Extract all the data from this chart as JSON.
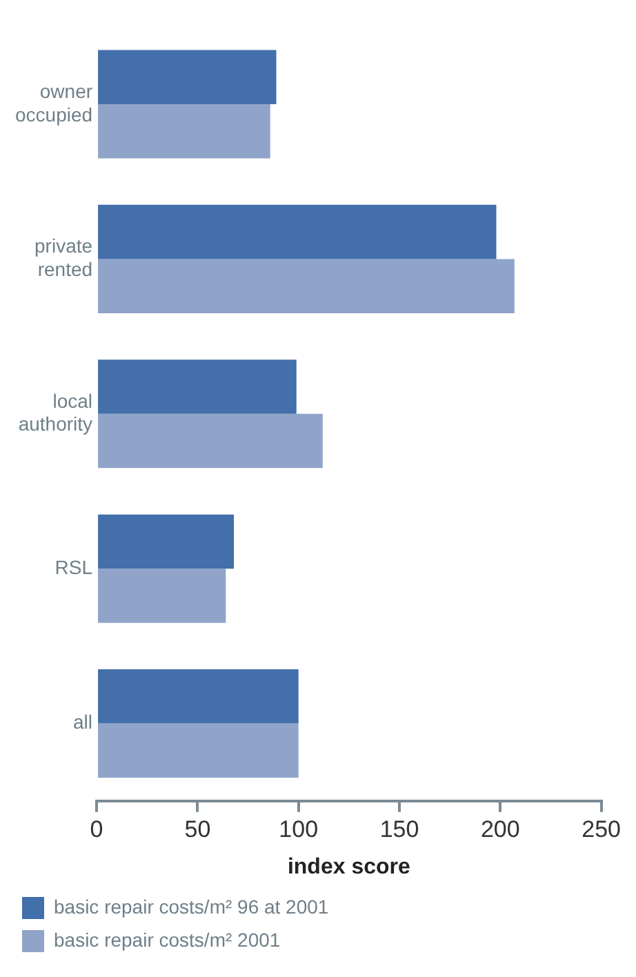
{
  "chart_data": {
    "type": "bar",
    "orientation": "horizontal",
    "xlabel": "index score",
    "categories": [
      "owner occupied",
      "private rented",
      "local authority",
      "RSL",
      "all"
    ],
    "series": [
      {
        "name": "basic repair costs/m² 96 at 2001",
        "color": "#436fab",
        "values": [
          89,
          198,
          99,
          68,
          100
        ]
      },
      {
        "name": "basic repair costs/m² 2001",
        "color": "#90a4c9",
        "values": [
          86,
          207,
          112,
          64,
          100
        ]
      }
    ],
    "xlim": [
      0,
      250
    ],
    "xticks": [
      0,
      50,
      100,
      150,
      200,
      250
    ],
    "legend": "bottom left"
  }
}
